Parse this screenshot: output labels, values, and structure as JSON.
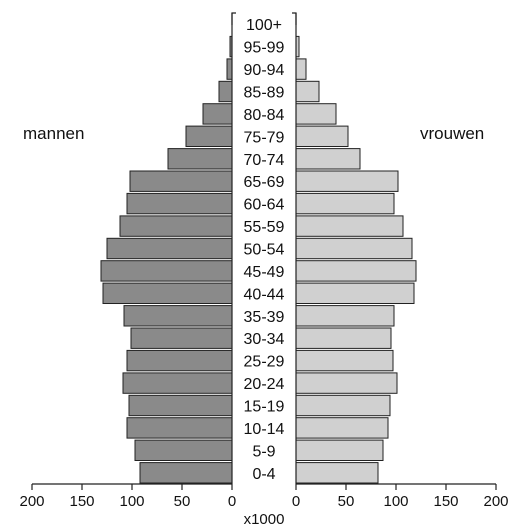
{
  "chart_data": {
    "type": "bar",
    "subtype": "population-pyramid",
    "title": "",
    "xlabel": "x1000",
    "ylabel": "",
    "categories": [
      "0-4",
      "5-9",
      "10-14",
      "15-19",
      "20-24",
      "25-29",
      "30-34",
      "35-39",
      "40-44",
      "45-49",
      "50-54",
      "55-59",
      "60-64",
      "65-69",
      "70-74",
      "75-79",
      "80-84",
      "85-89",
      "90-94",
      "95-99",
      "100+"
    ],
    "series": [
      {
        "name": "mannen",
        "side": "left",
        "color": "#8a8a8a",
        "values": [
          92,
          97,
          105,
          103,
          109,
          105,
          101,
          108,
          129,
          131,
          125,
          112,
          105,
          102,
          64,
          46,
          29,
          13,
          5,
          2,
          0
        ]
      },
      {
        "name": "vrouwen",
        "side": "right",
        "color": "#d0d0d0",
        "values": [
          82,
          87,
          92,
          94,
          101,
          97,
          95,
          98,
          118,
          120,
          116,
          107,
          98,
          102,
          64,
          52,
          40,
          23,
          10,
          3,
          0
        ]
      }
    ],
    "xticks_left": [
      "200",
      "150",
      "100",
      "50",
      "0"
    ],
    "xticks_right": [
      "0",
      "50",
      "100",
      "150",
      "200"
    ],
    "xlim": [
      0,
      200
    ],
    "grid": false,
    "legend": "side labels"
  }
}
